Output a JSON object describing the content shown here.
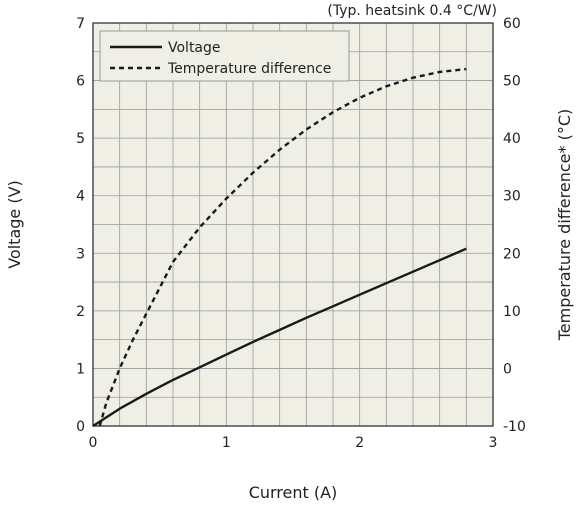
{
  "chart_data": {
    "type": "line",
    "note": "(Typ. heatsink 0.4 °C/W)",
    "xlabel": "Current (A)",
    "ylabel_left": "Voltage (V)",
    "ylabel_right": "Temperature difference* (°C)",
    "xlim": [
      0,
      3
    ],
    "ylim_left": [
      0,
      7
    ],
    "ylim_right": [
      -10,
      60
    ],
    "x_ticks": [
      "0",
      "1",
      "2",
      "3"
    ],
    "y_left_ticks": [
      "0",
      "1",
      "2",
      "3",
      "4",
      "5",
      "6",
      "7"
    ],
    "y_right_ticks": [
      "-10",
      "0",
      "10",
      "20",
      "30",
      "40",
      "50",
      "60"
    ],
    "grid": true,
    "legend_position": "top-left",
    "series": [
      {
        "name": "Voltage",
        "axis": "left",
        "style": "solid",
        "color": "#1a1a1a",
        "x": [
          0.0,
          0.1,
          0.2,
          0.4,
          0.6,
          0.8,
          1.0,
          1.2,
          1.4,
          1.6,
          1.8,
          2.0,
          2.2,
          2.4,
          2.6,
          2.8
        ],
        "y": [
          0.0,
          0.15,
          0.3,
          0.56,
          0.8,
          1.02,
          1.24,
          1.46,
          1.67,
          1.88,
          2.08,
          2.28,
          2.48,
          2.68,
          2.88,
          3.08
        ]
      },
      {
        "name": "Temperature difference",
        "axis": "right",
        "style": "dashed",
        "color": "#1a1a1a",
        "x": [
          0.05,
          0.1,
          0.2,
          0.3,
          0.4,
          0.5,
          0.6,
          0.8,
          1.0,
          1.2,
          1.4,
          1.6,
          1.8,
          2.0,
          2.2,
          2.4,
          2.6,
          2.8
        ],
        "y": [
          -10.0,
          -6.0,
          0.0,
          5.0,
          9.5,
          14.0,
          18.5,
          24.5,
          29.5,
          34.0,
          38.0,
          41.5,
          44.5,
          47.0,
          49.0,
          50.5,
          51.5,
          52.0
        ]
      }
    ]
  },
  "style": {
    "plot_background": "#f0efe6",
    "grid_color": "#9a9a9a",
    "line_color": "#1a1a1a"
  }
}
